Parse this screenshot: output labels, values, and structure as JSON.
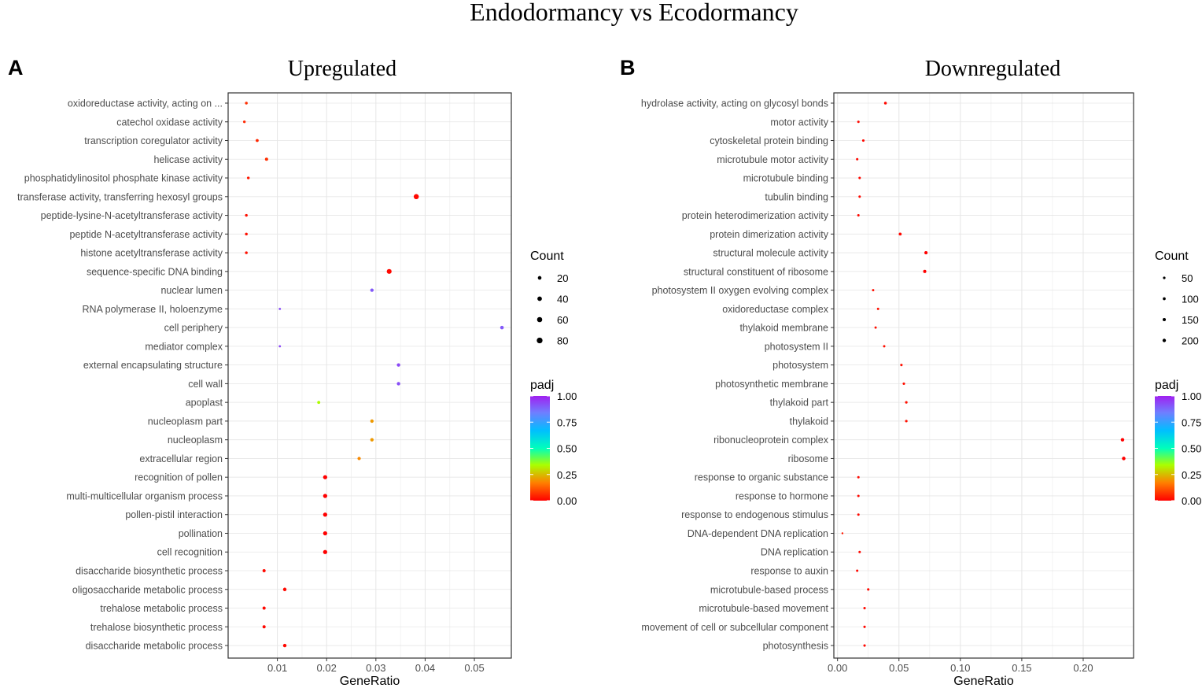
{
  "figure_title": "Endodormancy vs Ecodormancy",
  "colorbar_colors": [
    "#ff0000",
    "#ff7f00",
    "#aaff00",
    "#00ffbb",
    "#00bfff",
    "#6f7fff",
    "#a020f0"
  ],
  "chart_data": [
    {
      "type": "scatter",
      "panel_letter": "A",
      "title": "Upregulated",
      "xlabel": "GeneRatio",
      "xlim": [
        0.0,
        0.0575
      ],
      "xticks": [
        0.01,
        0.02,
        0.03,
        0.04,
        0.05
      ],
      "xtick_labels": [
        "0.01",
        "0.02",
        "0.03",
        "0.04",
        "0.05"
      ],
      "size_legend": {
        "title": "Count",
        "values": [
          20,
          40,
          60,
          80
        ],
        "labels": [
          "20",
          "40",
          "60",
          "80"
        ]
      },
      "color_legend": {
        "title": "padj",
        "ticks": [
          1.0,
          0.75,
          0.5,
          0.25,
          0.0
        ],
        "labels": [
          "1.00",
          "0.75",
          "0.50",
          "0.25",
          "0.00"
        ]
      },
      "terms": [
        "oxidoreductase activity, acting on ...",
        "catechol oxidase activity",
        "transcription coregulator activity",
        "helicase activity",
        "phosphatidylinositol phosphate kinase activity",
        "transferase activity, transferring hexosyl groups",
        "peptide-lysine-N-acetyltransferase activity",
        "peptide N-acetyltransferase activity",
        "histone acetyltransferase activity",
        "sequence-specific DNA binding",
        "nuclear lumen",
        "RNA polymerase II, holoenzyme",
        "cell periphery",
        "mediator complex",
        "external encapsulating structure",
        "cell wall",
        "apoplast",
        "nucleoplasm part",
        "nucleoplasm",
        "extracellular region",
        "recognition of pollen",
        "multi-multicellular organism process",
        "pollen-pistil interaction",
        "pollination",
        "cell recognition",
        "disaccharide biosynthetic process",
        "oligosaccharide metabolic process",
        "trehalose metabolic process",
        "trehalose biosynthetic process",
        "disaccharide metabolic process"
      ],
      "gene_ratio": [
        0.0037,
        0.0033,
        0.0059,
        0.0078,
        0.0041,
        0.0382,
        0.0037,
        0.0037,
        0.0037,
        0.0327,
        0.0292,
        0.0105,
        0.0556,
        0.0105,
        0.0346,
        0.0346,
        0.0184,
        0.0292,
        0.0292,
        0.0266,
        0.0197,
        0.0197,
        0.0197,
        0.0197,
        0.0197,
        0.0073,
        0.0115,
        0.0073,
        0.0073,
        0.0115
      ],
      "count": [
        6,
        5,
        9,
        12,
        6,
        58,
        6,
        6,
        6,
        50,
        15,
        2,
        19,
        2,
        16,
        16,
        10,
        15,
        15,
        14,
        30,
        30,
        30,
        30,
        30,
        11,
        17,
        11,
        11,
        17
      ],
      "padj": [
        0.06,
        0.05,
        0.05,
        0.06,
        0.03,
        0.01,
        0.02,
        0.02,
        0.02,
        0.01,
        0.9,
        0.92,
        0.9,
        0.93,
        0.93,
        0.92,
        0.33,
        0.2,
        0.2,
        0.18,
        0.0,
        0.0,
        0.0,
        0.0,
        0.0,
        0.01,
        0.01,
        0.01,
        0.01,
        0.01
      ]
    },
    {
      "type": "scatter",
      "panel_letter": "B",
      "title": "Downregulated",
      "xlabel": "GeneRatio",
      "xlim": [
        -0.003,
        0.241
      ],
      "xticks": [
        0.0,
        0.05,
        0.1,
        0.15,
        0.2
      ],
      "xtick_labels": [
        "0.00",
        "0.05",
        "0.10",
        "0.15",
        "0.20"
      ],
      "size_legend": {
        "title": "Count",
        "values": [
          50,
          100,
          150,
          200
        ],
        "labels": [
          "50",
          "100",
          "150",
          "200"
        ]
      },
      "color_legend": {
        "title": "padj",
        "ticks": [
          1.0,
          0.75,
          0.5,
          0.25,
          0.0
        ],
        "labels": [
          "1.00",
          "0.75",
          "0.50",
          "0.25",
          "0.00"
        ]
      },
      "terms": [
        "hydrolase activity, acting on glycosyl bonds",
        "motor activity",
        "cytoskeletal protein binding",
        "microtubule motor activity",
        "microtubule binding",
        "tubulin binding",
        "protein heterodimerization activity",
        "protein dimerization activity",
        "structural molecule activity",
        "structural constituent of ribosome",
        "photosystem II oxygen evolving complex",
        "oxidoreductase complex",
        "thylakoid membrane",
        "photosystem II",
        "photosystem",
        "photosynthetic membrane",
        "thylakoid part",
        "thylakoid",
        "ribonucleoprotein complex",
        "ribosome",
        "response to organic substance",
        "response to hormone",
        "response to endogenous stimulus",
        "DNA-dependent DNA replication",
        "DNA replication",
        "response to auxin",
        "microtubule-based process",
        "microtubule-based movement",
        "movement of cell or subcellular component",
        "photosynthesis"
      ],
      "gene_ratio": [
        0.039,
        0.017,
        0.021,
        0.016,
        0.018,
        0.018,
        0.017,
        0.051,
        0.072,
        0.071,
        0.029,
        0.033,
        0.031,
        0.038,
        0.052,
        0.054,
        0.056,
        0.056,
        0.232,
        0.233,
        0.017,
        0.017,
        0.017,
        0.004,
        0.018,
        0.016,
        0.025,
        0.022,
        0.022,
        0.022
      ],
      "count": [
        80,
        40,
        45,
        38,
        40,
        40,
        39,
        105,
        150,
        148,
        25,
        29,
        27,
        34,
        45,
        47,
        50,
        50,
        215,
        220,
        35,
        35,
        35,
        7,
        38,
        35,
        45,
        42,
        42,
        42
      ],
      "padj": [
        0.01,
        0.01,
        0.01,
        0.01,
        0.01,
        0.01,
        0.01,
        0.01,
        0.0,
        0.0,
        0.02,
        0.02,
        0.02,
        0.02,
        0.02,
        0.02,
        0.02,
        0.02,
        0.0,
        0.0,
        0.01,
        0.01,
        0.01,
        0.03,
        0.01,
        0.01,
        0.01,
        0.01,
        0.01,
        0.01
      ]
    }
  ]
}
